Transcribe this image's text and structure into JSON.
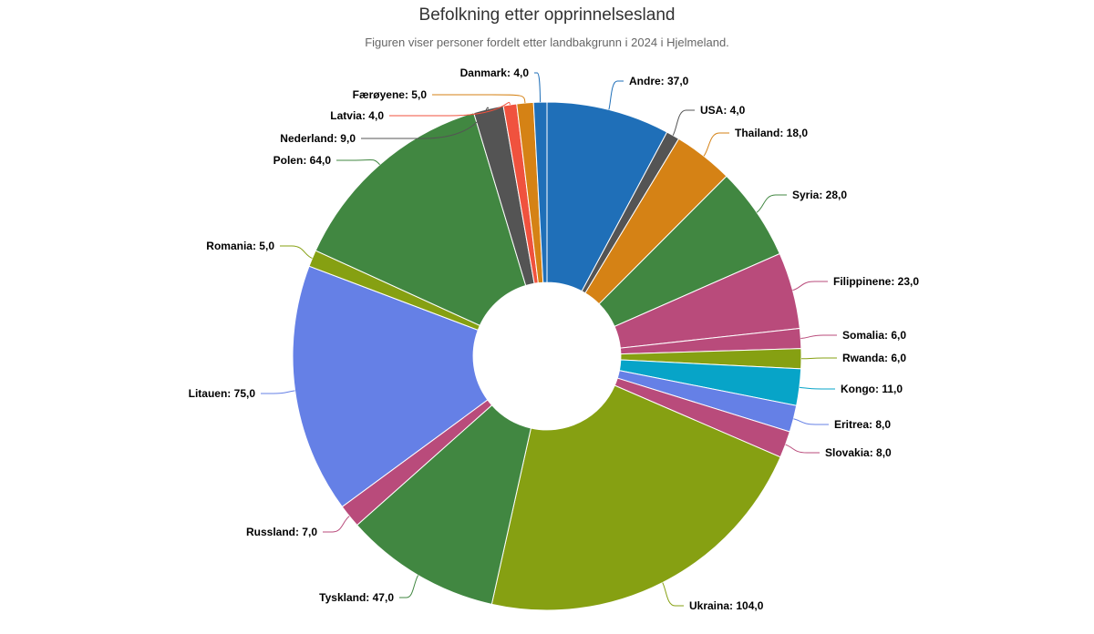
{
  "chart_data": {
    "type": "pie",
    "title": "Befolkning etter opprinnelsesland",
    "subtitle": "Figuren viser personer fordelt etter landbakgrunn i 2024 i Hjelmeland.",
    "inner_radius_ratio": 0.29,
    "legend": "none",
    "slices": [
      {
        "name": "Andre",
        "value": 37,
        "label": "Andre: 37,0",
        "color": "#1f6fb8"
      },
      {
        "name": "USA",
        "value": 4,
        "label": "USA: 4,0",
        "color": "#545454"
      },
      {
        "name": "Thailand",
        "value": 18,
        "label": "Thailand: 18,0",
        "color": "#d58215"
      },
      {
        "name": "Syria",
        "value": 28,
        "label": "Syria: 28,0",
        "color": "#418741"
      },
      {
        "name": "Filippinene",
        "value": 23,
        "label": "Filippinene: 23,0",
        "color": "#b94b7b"
      },
      {
        "name": "Somalia",
        "value": 6,
        "label": "Somalia: 6,0",
        "color": "#b94b7b"
      },
      {
        "name": "Rwanda",
        "value": 6,
        "label": "Rwanda: 6,0",
        "color": "#86a012"
      },
      {
        "name": "Kongo",
        "value": 11,
        "label": "Kongo: 11,0",
        "color": "#07a4c8"
      },
      {
        "name": "Eritrea",
        "value": 8,
        "label": "Eritrea: 8,0",
        "color": "#6580e6"
      },
      {
        "name": "Slovakia",
        "value": 8,
        "label": "Slovakia: 8,0",
        "color": "#b94b7b"
      },
      {
        "name": "Ukraina",
        "value": 104,
        "label": "Ukraina: 104,0",
        "color": "#86a012"
      },
      {
        "name": "Tyskland",
        "value": 47,
        "label": "Tyskland: 47,0",
        "color": "#418741"
      },
      {
        "name": "Russland",
        "value": 7,
        "label": "Russland: 7,0",
        "color": "#b94b7b"
      },
      {
        "name": "Litauen",
        "value": 75,
        "label": "Litauen: 75,0",
        "color": "#6580e6"
      },
      {
        "name": "Romania",
        "value": 5,
        "label": "Romania: 5,0",
        "color": "#86a012"
      },
      {
        "name": "Polen",
        "value": 64,
        "label": "Polen: 64,0",
        "color": "#418741"
      },
      {
        "name": "Nederland",
        "value": 9,
        "label": "Nederland: 9,0",
        "color": "#545454"
      },
      {
        "name": "Latvia",
        "value": 4,
        "label": "Latvia: 4,0",
        "color": "#f0523e"
      },
      {
        "name": "Færøyene",
        "value": 5,
        "label": "Færøyene: 5,0",
        "color": "#d58215"
      },
      {
        "name": "Danmark",
        "value": 4,
        "label": "Danmark: 4,0",
        "color": "#1f6fb8"
      }
    ]
  }
}
